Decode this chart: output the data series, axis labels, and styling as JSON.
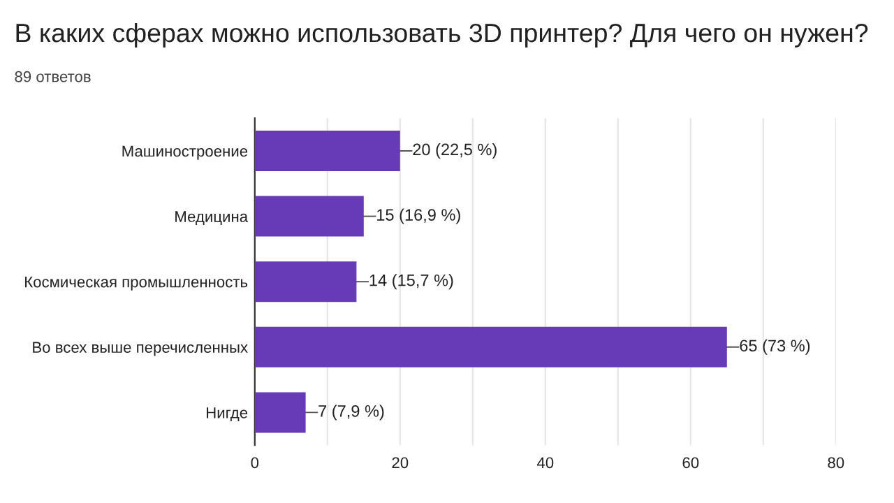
{
  "chart_data": {
    "type": "bar",
    "orientation": "horizontal",
    "title": "В каких сферах можно использовать 3D принтер? Для чего он нужен?",
    "subtitle": "89 ответов",
    "categories": [
      "Машиностроение",
      "Медицина",
      "Космическая промышленность",
      "Во всех выше перечисленных",
      "Нигде"
    ],
    "values": [
      20,
      15,
      14,
      65,
      7
    ],
    "color": "#673ab7",
    "value_labels": [
      "20 (22,5 %)",
      "15 (16,9 %)",
      "14 (15,7 %)",
      "65 (73 %)",
      "7 (7,9 %)"
    ],
    "xlim": [
      0,
      80
    ],
    "xticks": [
      0,
      {
        "value": 10,
        "label": null
      },
      20,
      {
        "value": 30,
        "label": null
      },
      40,
      {
        "value": 50,
        "label": null
      },
      60,
      {
        "value": 70,
        "label": null
      },
      80
    ],
    "grid": "x",
    "legend": false
  }
}
